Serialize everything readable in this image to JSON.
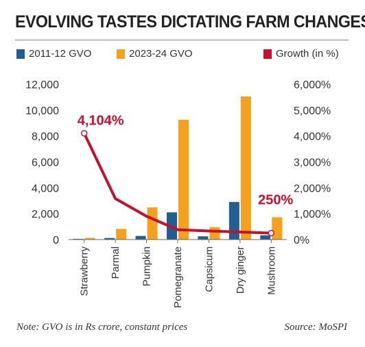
{
  "title": "EVOLVING TASTES DICTATING FARM CHANGES",
  "note": "Note: GVO is in Rs crore, constant prices",
  "source": "Source: MoSPI",
  "colors": {
    "series_2011": "#1f5f95",
    "series_2023": "#f5a11c",
    "growth": "#c8102e",
    "axis": "#666666"
  },
  "chart_data": {
    "type": "bar",
    "categories": [
      "Strawberry",
      "Parmal",
      "Pumpkin",
      "Pomegranate",
      "Capsicum",
      "Dry ginger",
      "Mushroom"
    ],
    "series": [
      {
        "name": "2011-12 GVO",
        "values": [
          50,
          120,
          280,
          2100,
          250,
          2900,
          330
        ]
      },
      {
        "name": "2023-24 GVO",
        "values": [
          130,
          820,
          2480,
          9250,
          950,
          11050,
          1720
        ]
      }
    ],
    "line_series": {
      "name": "Growth (in %)",
      "values": [
        4104,
        1580,
        900,
        380,
        330,
        290,
        250
      ]
    },
    "y_left": {
      "ticks": [
        "0",
        "2,000",
        "4,000",
        "6,000",
        "8,000",
        "10,000",
        "12,000"
      ],
      "ylim": [
        0,
        12000
      ]
    },
    "y_right": {
      "ticks": [
        "0%",
        "1,000%",
        "2,000%",
        "3,000%",
        "4,000%",
        "5,000%",
        "6,000%"
      ],
      "ylim": [
        0,
        6000
      ]
    },
    "annotations": [
      "4,104%",
      "250%"
    ],
    "legend_position": "top"
  }
}
